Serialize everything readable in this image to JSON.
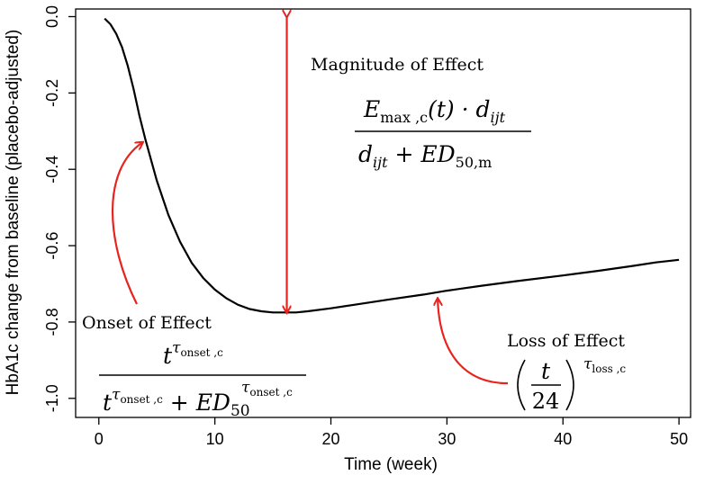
{
  "chart_data": {
    "type": "line",
    "xlabel": "Time (week)",
    "ylabel": "HbA1c change from baseline (placebo-adjusted)",
    "xlim": [
      -2,
      51
    ],
    "ylim": [
      -1.05,
      0.02
    ],
    "x_ticks": [
      0,
      10,
      20,
      30,
      40,
      50
    ],
    "y_ticks": [
      0.0,
      -0.2,
      -0.4,
      -0.6,
      -0.8,
      -1.0
    ],
    "x_tick_labels": [
      "0",
      "10",
      "20",
      "30",
      "40",
      "50"
    ],
    "y_tick_labels": [
      "0.0",
      "-0.2",
      "-0.4",
      "-0.6",
      "-0.8",
      "-1.0"
    ],
    "grid": false,
    "series": [
      {
        "color": "#000000",
        "x": [
          0.5,
          1,
          1.5,
          2,
          2.5,
          3,
          3.5,
          4,
          5,
          6,
          7,
          8,
          9,
          10,
          11,
          12,
          13,
          14,
          15,
          16,
          17,
          18,
          20,
          22,
          25,
          28,
          30,
          33,
          36,
          40,
          43,
          46,
          48,
          50
        ],
        "y": [
          -0.005,
          -0.02,
          -0.045,
          -0.08,
          -0.13,
          -0.19,
          -0.26,
          -0.32,
          -0.43,
          -0.52,
          -0.59,
          -0.645,
          -0.685,
          -0.715,
          -0.738,
          -0.755,
          -0.766,
          -0.772,
          -0.775,
          -0.775,
          -0.775,
          -0.772,
          -0.764,
          -0.755,
          -0.741,
          -0.728,
          -0.718,
          -0.705,
          -0.693,
          -0.678,
          -0.666,
          -0.653,
          -0.644,
          -0.637
        ]
      }
    ],
    "annotations": {
      "magnitude": {
        "label": "Magnitude of Effect",
        "arrow_x": 16.2,
        "arrow_y_top": 0.0,
        "arrow_y_bottom": -0.775,
        "formula": {
          "num_E": "E",
          "num_sub": "max ,c",
          "num_t": "(t) · ",
          "num_d": "d",
          "num_d_sub": "ijt",
          "den_d": "d",
          "den_d_sub": "ijt",
          "den_plus": " + ",
          "den_ED": "ED",
          "den_ED_sub": "50,m"
        }
      },
      "onset": {
        "label": "Onset of Effect",
        "arrow_target": [
          4.0,
          -0.32
        ],
        "formula": {
          "num_t": "t",
          "num_tau": "τ",
          "num_tau_sub": "onset ,c",
          "den_t": "t",
          "den_tau": "τ",
          "den_tau_sub": "onset ,c",
          "den_plus": " + ",
          "den_ED": "ED",
          "den_ED_sub": "50",
          "den_ED_tau": "τ",
          "den_ED_tau_sub": "onset ,c"
        }
      },
      "loss": {
        "label": "Loss of Effect",
        "arrow_target": [
          29.2,
          -0.725
        ],
        "formula": {
          "num": "t",
          "den": "24",
          "tau": "τ",
          "tau_sub": "loss ,c"
        }
      }
    },
    "colors": {
      "line": "#000000",
      "arrow": "#e8231e",
      "axis": "#000000"
    }
  }
}
